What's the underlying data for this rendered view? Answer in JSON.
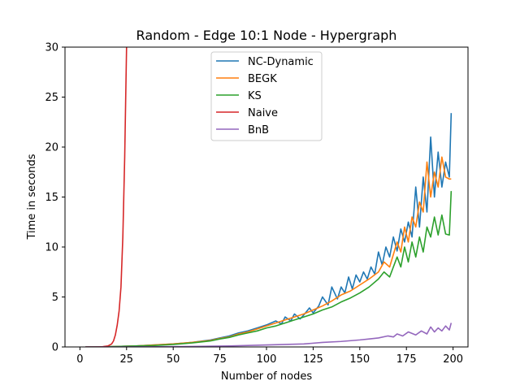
{
  "chart_data": {
    "type": "line",
    "title": "Random - Edge 10:1 Node - Hypergraph",
    "xlabel": "Number of nodes",
    "ylabel": "Time in seconds",
    "xlim": [
      -8,
      208
    ],
    "ylim": [
      0,
      30
    ],
    "xticks": [
      0,
      25,
      50,
      75,
      100,
      125,
      150,
      175,
      200
    ],
    "yticks": [
      0,
      5,
      10,
      15,
      20,
      25,
      30
    ],
    "grid": false,
    "legend_position": "top-center",
    "series": [
      {
        "name": "NC-Dynamic",
        "color": "#1f77b4",
        "x": [
          3,
          10,
          20,
          30,
          40,
          50,
          60,
          70,
          75,
          80,
          85,
          90,
          95,
          100,
          105,
          108,
          110,
          113,
          115,
          118,
          120,
          123,
          125,
          128,
          130,
          133,
          135,
          138,
          140,
          142,
          144,
          146,
          148,
          150,
          152,
          154,
          156,
          158,
          160,
          162,
          164,
          166,
          168,
          170,
          172,
          174,
          176,
          178,
          180,
          182,
          184,
          186,
          188,
          190,
          192,
          194,
          196,
          198,
          199
        ],
        "y": [
          0.0,
          0.0,
          0.05,
          0.1,
          0.2,
          0.3,
          0.45,
          0.7,
          0.9,
          1.1,
          1.4,
          1.6,
          1.9,
          2.2,
          2.6,
          2.3,
          3.0,
          2.6,
          3.3,
          2.8,
          3.2,
          3.9,
          3.4,
          4.1,
          5.0,
          4.2,
          6.0,
          4.8,
          6.0,
          5.4,
          7.0,
          5.8,
          7.2,
          6.5,
          7.5,
          6.8,
          8.0,
          7.3,
          9.5,
          8.2,
          10.0,
          9.0,
          11.0,
          9.6,
          11.8,
          10.5,
          12.5,
          11.0,
          16.0,
          12.0,
          17.0,
          13.5,
          21.0,
          15.0,
          19.5,
          16.0,
          18.5,
          17.0,
          23.4
        ]
      },
      {
        "name": "BEGK",
        "color": "#ff7f0e",
        "x": [
          3,
          10,
          20,
          30,
          40,
          50,
          60,
          70,
          75,
          80,
          85,
          90,
          95,
          100,
          105,
          110,
          115,
          120,
          125,
          130,
          135,
          140,
          145,
          150,
          155,
          160,
          163,
          166,
          170,
          172,
          174,
          176,
          178,
          180,
          182,
          184,
          186,
          188,
          190,
          192,
          194,
          196,
          198,
          199
        ],
        "y": [
          0.0,
          0.0,
          0.05,
          0.1,
          0.2,
          0.3,
          0.45,
          0.65,
          0.85,
          1.0,
          1.3,
          1.5,
          1.8,
          2.1,
          2.4,
          2.7,
          3.0,
          3.3,
          3.7,
          4.1,
          4.6,
          5.2,
          5.6,
          6.2,
          6.8,
          7.5,
          8.5,
          8.0,
          10.5,
          9.5,
          12.0,
          10.5,
          13.0,
          12.0,
          14.5,
          13.5,
          18.5,
          15.0,
          17.5,
          16.0,
          19.0,
          17.0,
          16.8,
          16.8
        ]
      },
      {
        "name": "KS",
        "color": "#2ca02c",
        "x": [
          3,
          10,
          20,
          30,
          40,
          50,
          60,
          70,
          75,
          80,
          85,
          90,
          95,
          100,
          105,
          110,
          115,
          120,
          125,
          130,
          135,
          140,
          145,
          150,
          155,
          160,
          163,
          166,
          170,
          172,
          174,
          176,
          178,
          180,
          182,
          184,
          186,
          188,
          190,
          192,
          194,
          196,
          198,
          199
        ],
        "y": [
          0.0,
          0.0,
          0.05,
          0.1,
          0.15,
          0.25,
          0.4,
          0.6,
          0.8,
          0.95,
          1.2,
          1.4,
          1.6,
          1.9,
          2.1,
          2.4,
          2.7,
          3.0,
          3.3,
          3.7,
          4.0,
          4.5,
          4.9,
          5.4,
          6.0,
          6.8,
          7.5,
          7.0,
          9.0,
          8.0,
          10.0,
          8.5,
          10.5,
          9.0,
          11.0,
          9.5,
          12.0,
          11.0,
          13.0,
          11.2,
          13.2,
          11.3,
          11.2,
          15.6
        ]
      },
      {
        "name": "Naive",
        "color": "#d62728",
        "x": [
          3,
          8,
          12,
          15,
          17,
          18,
          19,
          20,
          21,
          22,
          23,
          24,
          25
        ],
        "y": [
          0.0,
          0.0,
          0.02,
          0.1,
          0.3,
          0.6,
          1.2,
          2.2,
          3.6,
          6.0,
          11.0,
          19.0,
          30.0
        ]
      },
      {
        "name": "BnB",
        "color": "#9467bd",
        "x": [
          3,
          20,
          40,
          60,
          80,
          100,
          110,
          120,
          130,
          140,
          150,
          155,
          160,
          165,
          168,
          170,
          173,
          176,
          180,
          183,
          186,
          188,
          190,
          192,
          194,
          196,
          198,
          199
        ],
        "y": [
          0.0,
          0.0,
          0.02,
          0.05,
          0.1,
          0.2,
          0.25,
          0.3,
          0.45,
          0.55,
          0.7,
          0.8,
          0.9,
          1.1,
          1.0,
          1.3,
          1.1,
          1.5,
          1.2,
          1.6,
          1.3,
          2.0,
          1.5,
          1.9,
          1.6,
          2.1,
          1.7,
          2.4
        ]
      }
    ]
  }
}
